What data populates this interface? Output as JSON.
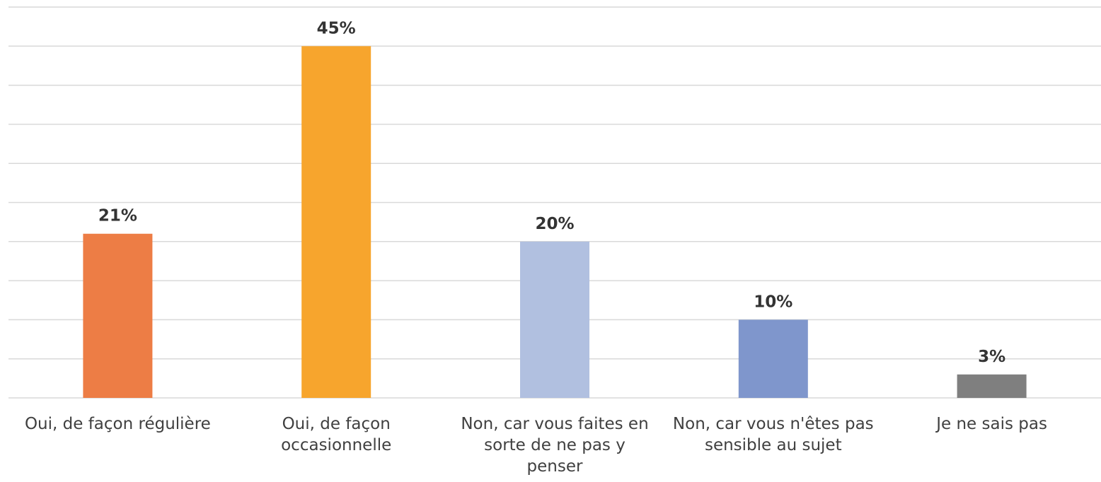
{
  "chart_data": {
    "type": "bar",
    "categories": [
      "Oui, de façon régulière",
      "Oui, de façon\noccasionnelle",
      "Non, car vous faites en\nsorte de ne pas y\npenser",
      "Non, car vous n'êtes pas\nsensible au sujet",
      "Je ne sais pas"
    ],
    "values": [
      21,
      45,
      20,
      10,
      3
    ],
    "value_labels": [
      "21%",
      "45%",
      "20%",
      "10%",
      "3%"
    ],
    "colors": [
      "#ED7D45",
      "#F7A52D",
      "#B1C0E0",
      "#7F96CC",
      "#7F7F7F"
    ],
    "ylim": [
      0,
      50
    ],
    "yticks": [
      0,
      5,
      10,
      15,
      20,
      25,
      30,
      35,
      40,
      45,
      50
    ],
    "grid": true
  }
}
